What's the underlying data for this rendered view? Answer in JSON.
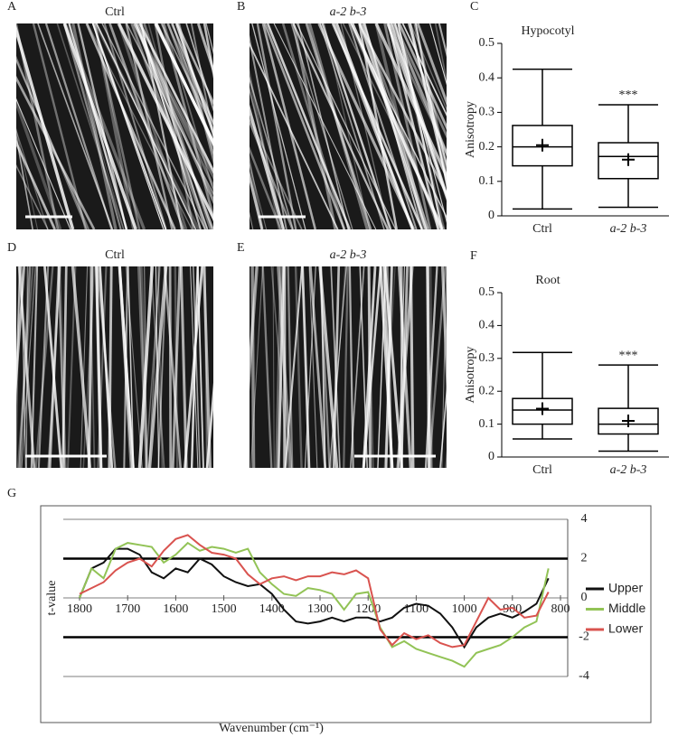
{
  "image_panels": [
    {
      "letter": "A",
      "title": "Ctrl"
    },
    {
      "letter": "B",
      "title": "a-2 b-3"
    },
    {
      "letter": "D",
      "title": "Ctrl"
    },
    {
      "letter": "E",
      "title": "a-2 b-3"
    }
  ],
  "chart_data": [
    {
      "type": "box",
      "panel": "C",
      "title": "Hypocotyl",
      "y_label": "Anisotropy",
      "categories": [
        "Ctrl",
        "a-2 b-3"
      ],
      "boxes": [
        {
          "min": 0.02,
          "q1": 0.145,
          "median": 0.2,
          "q3": 0.262,
          "max": 0.425,
          "mean": 0.205
        },
        {
          "min": 0.025,
          "q1": 0.108,
          "median": 0.172,
          "q3": 0.212,
          "max": 0.322,
          "mean": 0.163,
          "label": "***"
        }
      ],
      "ylim": [
        0,
        0.5
      ],
      "yticks": [
        0,
        0.1,
        0.2,
        0.3,
        0.4,
        0.5
      ],
      "color": "#000000"
    },
    {
      "type": "box",
      "panel": "F",
      "title": "Root",
      "y_label": "Anisotropy",
      "categories": [
        "Ctrl",
        "a-2 b-3"
      ],
      "boxes": [
        {
          "min": 0.055,
          "q1": 0.1,
          "median": 0.143,
          "q3": 0.178,
          "max": 0.318,
          "mean": 0.147
        },
        {
          "min": 0.018,
          "q1": 0.07,
          "median": 0.1,
          "q3": 0.148,
          "max": 0.28,
          "mean": 0.11,
          "label": "***"
        }
      ],
      "ylim": [
        0,
        0.5
      ],
      "yticks": [
        0,
        0.1,
        0.2,
        0.3,
        0.4,
        0.5
      ],
      "color": "#000000"
    },
    {
      "type": "line",
      "panel": "G",
      "x_label": "Wavenumber (cm⁻¹)",
      "y_label": "t-value",
      "x": [
        1800,
        1775,
        1750,
        1725,
        1700,
        1675,
        1650,
        1625,
        1600,
        1575,
        1550,
        1525,
        1500,
        1475,
        1450,
        1425,
        1400,
        1375,
        1350,
        1325,
        1300,
        1275,
        1250,
        1225,
        1200,
        1175,
        1150,
        1125,
        1100,
        1075,
        1050,
        1025,
        1000,
        975,
        950,
        925,
        900,
        875,
        850,
        825
      ],
      "series": [
        {
          "name": "Upper",
          "color": "#111111",
          "values": [
            0,
            1.5,
            1.8,
            2.5,
            2.5,
            2.2,
            1.3,
            1.0,
            1.5,
            1.3,
            2.0,
            1.7,
            1.1,
            0.8,
            0.6,
            0.7,
            0.2,
            -0.6,
            -1.2,
            -1.3,
            -1.2,
            -1.0,
            -1.2,
            -1.0,
            -1.0,
            -1.2,
            -1.0,
            -0.5,
            -0.3,
            -0.4,
            -0.8,
            -1.5,
            -2.5,
            -1.5,
            -1.0,
            -0.8,
            -1.0,
            -0.7,
            -0.3,
            1.0
          ]
        },
        {
          "name": "Middle",
          "color": "#92c356",
          "values": [
            0,
            1.5,
            1.0,
            2.5,
            2.8,
            2.7,
            2.6,
            1.8,
            2.2,
            2.8,
            2.4,
            2.6,
            2.5,
            2.3,
            2.5,
            1.3,
            0.7,
            0.2,
            0.1,
            0.5,
            0.4,
            0.2,
            -0.6,
            0.2,
            0.3,
            -1.5,
            -2.5,
            -2.2,
            -2.6,
            -2.8,
            -3.0,
            -3.2,
            -3.5,
            -2.8,
            -2.6,
            -2.4,
            -2.0,
            -1.5,
            -1.2,
            1.5
          ]
        },
        {
          "name": "Lower",
          "color": "#d9534f",
          "values": [
            0.2,
            0.5,
            0.8,
            1.4,
            1.8,
            2.0,
            1.6,
            2.4,
            3.0,
            3.2,
            2.7,
            2.3,
            2.2,
            2.0,
            1.2,
            0.7,
            1.0,
            1.1,
            0.9,
            1.1,
            1.1,
            1.3,
            1.2,
            1.4,
            1.0,
            -1.6,
            -2.4,
            -1.8,
            -2.1,
            -1.9,
            -2.3,
            -2.5,
            -2.4,
            -1.2,
            0.0,
            -0.6,
            -0.5,
            -1.0,
            -0.9,
            0.3
          ]
        }
      ],
      "xlim": [
        1800,
        800
      ],
      "xticks": [
        1800,
        1700,
        1600,
        1500,
        1400,
        1300,
        1200,
        1100,
        1000,
        900,
        800
      ],
      "ylim": [
        -4,
        4
      ],
      "yticks": [
        4,
        2,
        0,
        -2,
        -4
      ],
      "reference_lines": [
        2,
        -2
      ],
      "grid": true
    }
  ]
}
